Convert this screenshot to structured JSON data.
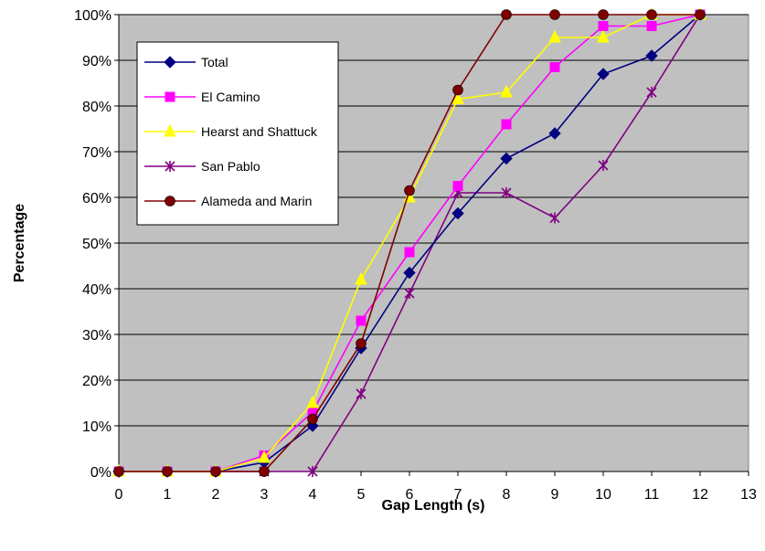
{
  "chart_data": {
    "type": "line",
    "xlabel": "Gap Length (s)",
    "ylabel": "Percentage",
    "xlim": [
      0,
      13
    ],
    "ylim": [
      0,
      100
    ],
    "x_ticks": [
      "0",
      "1",
      "2",
      "3",
      "4",
      "5",
      "6",
      "7",
      "8",
      "9",
      "10",
      "11",
      "12",
      "13"
    ],
    "y_ticks": [
      "0%",
      "10%",
      "20%",
      "30%",
      "40%",
      "50%",
      "60%",
      "70%",
      "80%",
      "90%",
      "100%"
    ],
    "grid": "horizontal",
    "plot_background": "#c0c0c0",
    "legend_position": "top-left",
    "series": [
      {
        "name": "Total",
        "color": "#000080",
        "marker": "diamond",
        "x": [
          0,
          1,
          2,
          3,
          4,
          5,
          6,
          7,
          8,
          9,
          10,
          11,
          12
        ],
        "values": [
          0,
          0,
          0,
          2,
          10,
          27,
          43.5,
          56.5,
          68.5,
          74,
          87,
          91,
          100
        ]
      },
      {
        "name": "El Camino",
        "color": "#ff00ff",
        "marker": "square",
        "x": [
          0,
          1,
          2,
          3,
          4,
          5,
          6,
          7,
          8,
          9,
          10,
          11,
          12
        ],
        "values": [
          0,
          0,
          0,
          3.5,
          13,
          33,
          48,
          62.5,
          76,
          88.5,
          97.5,
          97.5,
          100
        ]
      },
      {
        "name": "Hearst and Shattuck",
        "color": "#ffff00",
        "marker": "triangle",
        "x": [
          0,
          1,
          2,
          3,
          4,
          5,
          6,
          7,
          8,
          9,
          10,
          11,
          12
        ],
        "values": [
          0,
          0,
          0,
          3,
          15,
          42,
          60,
          81.5,
          83,
          95,
          95,
          100,
          100
        ]
      },
      {
        "name": "San Pablo",
        "color": "#800080",
        "marker": "asterisk",
        "x": [
          0,
          1,
          2,
          3,
          4,
          5,
          6,
          7,
          8,
          9,
          10,
          11,
          12
        ],
        "values": [
          0,
          0,
          0,
          0,
          0,
          17,
          39,
          61,
          61,
          55.5,
          67,
          83,
          100
        ]
      },
      {
        "name": "Alameda and Marin",
        "color": "#800000",
        "marker": "circle",
        "x": [
          0,
          1,
          2,
          3,
          4,
          5,
          6,
          7,
          8,
          9,
          10,
          11,
          12
        ],
        "values": [
          0,
          0,
          0,
          0,
          11.5,
          28,
          61.5,
          83.5,
          100,
          100,
          100,
          100,
          100
        ]
      }
    ]
  }
}
